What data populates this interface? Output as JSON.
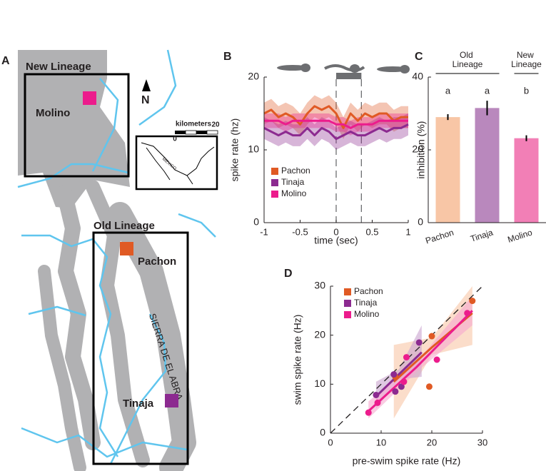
{
  "map": {
    "panel": "A",
    "new_lineage": "New Lineage",
    "old_lineage": "Old Lineage",
    "sites": [
      {
        "name": "Molino",
        "color": "#ec1c8c"
      },
      {
        "name": "Pachon",
        "color": "#e05a24"
      },
      {
        "name": "Tinaja",
        "color": "#8c2a90"
      }
    ],
    "range": "SIERRA DE EL ABRA",
    "north": "N",
    "scale_title": "kilometers",
    "scale_ticks": [
      "0",
      "20"
    ],
    "inset": "MEXICO"
  },
  "chart_data": [
    {
      "panel": "B",
      "type": "line",
      "x": [
        -1,
        -0.9,
        -0.8,
        -0.7,
        -0.6,
        -0.5,
        -0.4,
        -0.3,
        -0.2,
        -0.1,
        0,
        0.1,
        0.2,
        0.3,
        0.4,
        0.5,
        0.6,
        0.7,
        0.8,
        0.9,
        1
      ],
      "series": [
        {
          "name": "Pachon",
          "color": "#e05a24",
          "values": [
            15,
            15.5,
            14.5,
            15,
            14.5,
            13.5,
            15,
            16,
            15.5,
            16,
            15,
            13,
            15,
            14,
            15,
            14.5,
            15,
            15,
            14,
            14.5,
            14.5
          ],
          "errors": [
            1.5,
            1.5,
            1.5,
            1.5,
            1.5,
            1.5,
            1.5,
            1.5,
            1.5,
            1.5,
            1.5,
            1.5,
            1.5,
            1.5,
            1.5,
            1.5,
            1.5,
            1.5,
            1.5,
            1.5,
            1.5
          ]
        },
        {
          "name": "Tinaja",
          "color": "#8c2a90",
          "values": [
            13,
            12.5,
            12,
            12.5,
            12,
            12,
            13,
            12,
            13,
            12.5,
            11.5,
            12,
            12.5,
            12,
            12,
            12.5,
            13,
            12.5,
            13,
            13,
            13.5
          ],
          "errors": [
            1.5,
            1.5,
            1.5,
            1.5,
            1.5,
            1.5,
            1.5,
            1.5,
            1.5,
            1.5,
            1.5,
            1.5,
            1.5,
            1.5,
            1.5,
            1.5,
            1.5,
            1.5,
            1.5,
            1.5,
            1.5
          ]
        },
        {
          "name": "Molino",
          "color": "#ec1c8c",
          "values": [
            14,
            14,
            14,
            13.5,
            14,
            14,
            14,
            14,
            14,
            14,
            13.5,
            13.5,
            13,
            13.5,
            13.5,
            13.5,
            14,
            14,
            14,
            14,
            14
          ],
          "errors": [
            1,
            1,
            1,
            1,
            1,
            1,
            1,
            1,
            1,
            1,
            1,
            1,
            1,
            1,
            1,
            1,
            1,
            1,
            1,
            1,
            1
          ]
        }
      ],
      "xlim": [
        -1,
        1
      ],
      "xticks": [
        -1,
        -0.5,
        0,
        0.5,
        1
      ],
      "ylim": [
        0,
        20
      ],
      "yticks": [
        0,
        10,
        20
      ],
      "xlabel": "time (sec)",
      "ylabel": "spike rate (hz)",
      "swim_window": [
        0,
        0.35
      ],
      "legend": "lower-left"
    },
    {
      "panel": "C",
      "type": "bar",
      "categories": [
        "Pachon",
        "Tinaja",
        "Molino"
      ],
      "values": [
        29,
        31.5,
        23.2
      ],
      "errors": [
        0.8,
        2,
        0.8
      ],
      "colors": [
        "#f8c6a6",
        "#b988bd",
        "#f27fb6"
      ],
      "letters": [
        "a",
        "a",
        "b"
      ],
      "groups": [
        {
          "label": "Old Lineage",
          "members": [
            "Pachon",
            "Tinaja"
          ]
        },
        {
          "label": "New Lineage",
          "members": [
            "Molino"
          ]
        }
      ],
      "ylim": [
        0,
        40
      ],
      "yticks": [
        0,
        20,
        40
      ],
      "ylabel": "inhibition (%)"
    },
    {
      "panel": "D",
      "type": "scatter",
      "series": [
        {
          "name": "Pachon",
          "color": "#e05a24",
          "band_color": "#f8c6a6",
          "x": [
            12.8,
            19.5,
            20,
            28
          ],
          "y": [
            11.5,
            9.5,
            19.8,
            27
          ],
          "fit_x": [
            12.5,
            20,
            28
          ],
          "fit_y": [
            10.5,
            17.5,
            24.5
          ],
          "fit_lower": [
            3,
            16,
            18
          ],
          "fit_upper": [
            18,
            19.5,
            30
          ]
        },
        {
          "name": "Tinaja",
          "color": "#8c2a90",
          "band_color": "#c9a3cf",
          "x": [
            9,
            12.5,
            12.8,
            14,
            17.5
          ],
          "y": [
            7.8,
            12,
            8.5,
            9.5,
            18.5
          ],
          "fit_x": [
            9,
            13.5,
            18
          ],
          "fit_y": [
            7.5,
            12,
            16.5
          ],
          "fit_lower": [
            5,
            11,
            11.5
          ],
          "fit_upper": [
            10.5,
            13,
            22
          ]
        },
        {
          "name": "Molino",
          "color": "#ec1c8c",
          "band_color": "#f6a9cf",
          "x": [
            7.5,
            9.3,
            14.5,
            15,
            21,
            27
          ],
          "y": [
            4.2,
            6.2,
            10.5,
            15.5,
            15,
            24.5
          ],
          "fit_x": [
            7.5,
            17,
            28
          ],
          "fit_y": [
            4.5,
            13.5,
            25
          ],
          "fit_lower": [
            3,
            12.5,
            22
          ],
          "fit_upper": [
            6.5,
            14.5,
            28
          ]
        }
      ],
      "xlim": [
        0,
        30
      ],
      "ylim": [
        0,
        30
      ],
      "xticks": [
        0,
        10,
        20,
        30
      ],
      "yticks": [
        0,
        10,
        20,
        30
      ],
      "xlabel": "pre-swim spike rate (Hz)",
      "ylabel": "swim spike rate (Hz)",
      "identity_line": true,
      "legend": "upper-left"
    }
  ]
}
